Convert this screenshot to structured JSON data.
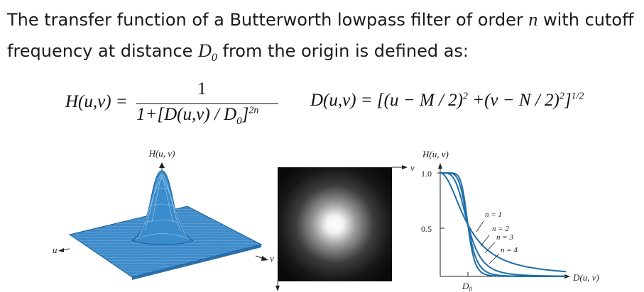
{
  "text": {
    "line1_a": "The transfer function of a Butterworth lowpass filter of order ",
    "order_symbol": "n",
    "line1_b": " with cutoff",
    "line2_a": "frequency at distance ",
    "cutoff_symbol": "D",
    "cutoff_sub": "0",
    "line2_b": " from the origin is defined as:"
  },
  "equations": {
    "h_lhs": "H(u,v) =",
    "h_numerator": "1",
    "h_denominator": "1+[D(u,v) / D",
    "h_den_sub": "0",
    "h_den_close": "]",
    "h_den_exp": "2n",
    "d_lhs": "D(u,v) = [(u − M / 2)",
    "d_sq1": "2",
    "d_mid": " +(v − N / 2)",
    "d_sq2": "2",
    "d_close": "]",
    "d_exp": "1/2"
  },
  "figure_left": {
    "label_h": "H(u, v)",
    "label_u": "u",
    "label_v": "v"
  },
  "figure_middle": {
    "label_v": "v"
  },
  "figure_right": {
    "label_h": "H(u, v)",
    "tick_1": "1.0",
    "tick_05": "0.5",
    "n1": "n = 1",
    "n2": "n = 2",
    "n3": "n = 3",
    "n4": "n = 4",
    "label_x": "D(u, v)",
    "label_d0": "D",
    "label_d0_sub": "0"
  },
  "chart_data": {
    "type": "line",
    "title": "",
    "xlabel": "D(u, v)",
    "ylabel": "H(u, v)",
    "yticks": [
      "0.5",
      "1.0"
    ],
    "xticks": [
      "D0"
    ],
    "ylim": [
      0,
      1.05
    ],
    "series": [
      {
        "name": "n = 1",
        "order": 1
      },
      {
        "name": "n = 2",
        "order": 2
      },
      {
        "name": "n = 3",
        "order": 3
      },
      {
        "name": "n = 4",
        "order": 4
      }
    ],
    "curve_color": "#1f6fa8"
  }
}
